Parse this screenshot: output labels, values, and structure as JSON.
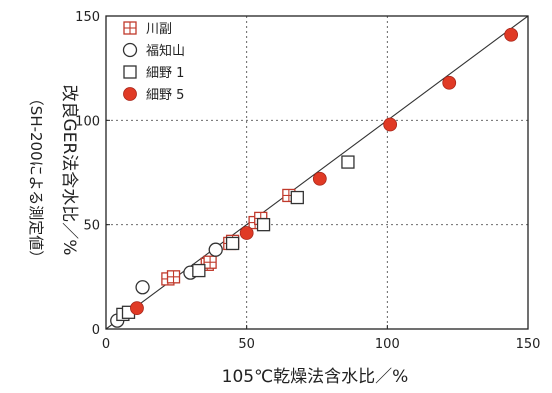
{
  "chart_data": {
    "type": "scatter",
    "title": "",
    "xlabel": "105℃乾燥法含水比／%",
    "ylabel": "改良GER法含水比／%",
    "ylabel_note": "（SH-200による測定値）",
    "xlim": [
      0,
      150
    ],
    "ylim": [
      0,
      150
    ],
    "xticks": [
      0,
      50,
      100,
      150
    ],
    "yticks": [
      0,
      50,
      100,
      150
    ],
    "grid": "dashed at 50 and 100",
    "legend_position": "top-left",
    "reference_line": {
      "type": "identity",
      "from": [
        0,
        0
      ],
      "to": [
        150,
        150
      ]
    },
    "series": [
      {
        "name": "川副",
        "marker": "square-plus",
        "color": "#c0392b",
        "x": [
          22,
          24,
          36,
          37,
          44,
          45,
          53,
          55,
          65
        ],
        "y": [
          24,
          25,
          31,
          32,
          41,
          42,
          51,
          53,
          64
        ]
      },
      {
        "name": "福知山",
        "marker": "circle-open",
        "color": "#333333",
        "x": [
          4,
          13,
          30,
          39
        ],
        "y": [
          4,
          20,
          27,
          38
        ]
      },
      {
        "name": "細野 1",
        "marker": "square-open",
        "color": "#333333",
        "x": [
          6,
          8,
          33,
          45,
          56,
          68,
          86
        ],
        "y": [
          7,
          8,
          28,
          41,
          50,
          63,
          80
        ]
      },
      {
        "name": "細野 5",
        "marker": "circle-filled",
        "color": "#e03a25",
        "x": [
          11,
          50,
          76,
          101,
          122,
          144
        ],
        "y": [
          10,
          46,
          72,
          98,
          118,
          141
        ]
      }
    ]
  }
}
